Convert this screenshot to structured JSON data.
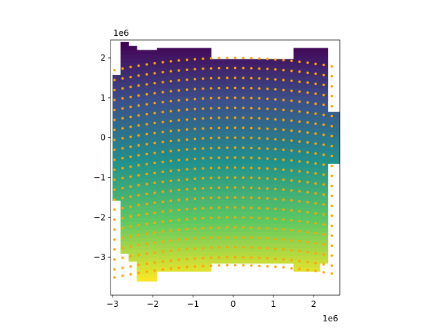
{
  "chart_data": {
    "type": "heatmap",
    "title": "",
    "xlabel": "",
    "ylabel": "",
    "x_scale_label": "1e6",
    "y_scale_label": "1e6",
    "xlim": [
      -3.05,
      2.65
    ],
    "ylim": [
      -3.95,
      2.45
    ],
    "x_ticks": [
      -3,
      -2,
      -1,
      0,
      1,
      2
    ],
    "y_ticks": [
      -3,
      -2,
      -1,
      0,
      1,
      2
    ],
    "x_tick_labels": [
      "−3",
      "−2",
      "−1",
      "0",
      "1",
      "2"
    ],
    "y_tick_labels": [
      "−3",
      "−2",
      "−1",
      "0",
      "1",
      "2"
    ],
    "colormap": "viridis",
    "color_value_range": [
      -3.6,
      2.4
    ],
    "grid": false,
    "columns": [
      {
        "x0": -3.0,
        "x1": -2.8,
        "ymin": -1.57,
        "ymax": 1.57
      },
      {
        "x0": -2.8,
        "x1": -2.6,
        "ymin": -2.9,
        "ymax": 2.4
      },
      {
        "x0": -2.6,
        "x1": -2.4,
        "ymin": -3.1,
        "ymax": 2.3
      },
      {
        "x0": -2.4,
        "x1": -1.9,
        "ymin": -3.6,
        "ymax": 2.2
      },
      {
        "x0": -1.9,
        "x1": -0.55,
        "ymin": -3.35,
        "ymax": 2.25
      },
      {
        "x0": -0.55,
        "x1": 1.5,
        "ymin": -3.15,
        "ymax": 1.97
      },
      {
        "x0": 1.5,
        "x1": 2.15,
        "ymin": -3.35,
        "ymax": 2.25
      },
      {
        "x0": 2.15,
        "x1": 2.35,
        "ymin": -3.15,
        "ymax": 2.25
      },
      {
        "x0": 2.35,
        "x1": 2.65,
        "ymin": -0.65,
        "ymax": 0.65
      }
    ],
    "points_series": {
      "color": "#ffa500",
      "x_values": [
        -2.95,
        -2.75,
        -2.55,
        -2.35,
        -2.15,
        -1.95,
        -1.75,
        -1.55,
        -1.35,
        -1.15,
        -0.95,
        -0.75,
        -0.55,
        -0.35,
        -0.15,
        0.05,
        0.25,
        0.45,
        0.65,
        0.85,
        1.05,
        1.25,
        1.45,
        1.65,
        1.85,
        2.05,
        2.25,
        2.45
      ],
      "row_offsets": [
        2.0,
        1.75,
        1.5,
        1.25,
        1.0,
        0.75,
        0.5,
        0.25,
        0.0,
        -0.25,
        -0.5,
        -0.75,
        -1.0,
        -1.25,
        -1.5,
        -1.75,
        -2.0,
        -2.25,
        -2.5,
        -2.75,
        -3.0,
        -3.2
      ],
      "row_curvature": -0.035,
      "ymin": -3.65,
      "ymax": 2.4
    }
  }
}
